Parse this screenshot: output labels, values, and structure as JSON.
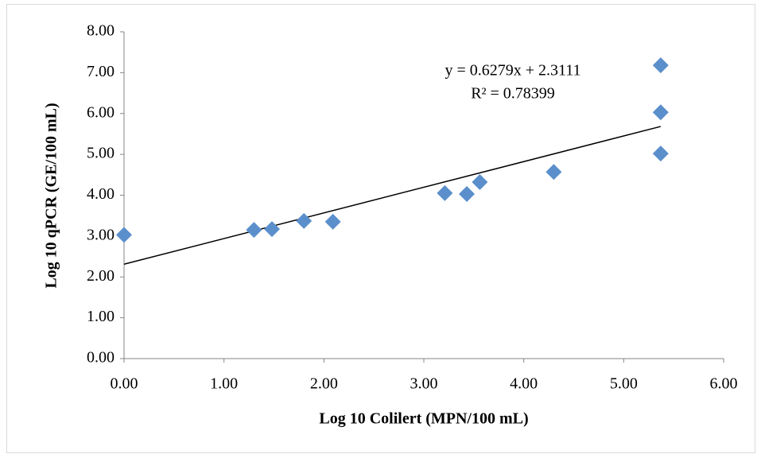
{
  "chart_data": {
    "type": "scatter",
    "x_label": "Log 10  Colilert (MPN/100 mL)",
    "y_label": "Log 10 qPCR (GE/100 mL)",
    "series": [
      {
        "color": "#5b8fcc",
        "x": [
          0,
          1.3,
          1.48,
          1.8,
          2.09,
          3.21,
          3.43,
          3.56,
          4.3,
          5.37,
          5.37,
          5.37
        ],
        "values": [
          3.03,
          3.15,
          3.17,
          3.37,
          3.35,
          4.05,
          4.03,
          4.32,
          4.57,
          7.18,
          6.03,
          5.02
        ]
      }
    ],
    "trendline": {
      "slope": 0.6279,
      "intercept": 2.3111,
      "color": "#000000"
    },
    "annotations": [
      "y = 0.6279x + 2.3111",
      "R² = 0.78399"
    ],
    "xlim": [
      0,
      6
    ],
    "xticks": [
      {
        "value": 0,
        "label": "0.00"
      },
      {
        "value": 1,
        "label": "1.00"
      },
      {
        "value": 2,
        "label": "2.00"
      },
      {
        "value": 3,
        "label": "3.00"
      },
      {
        "value": 4,
        "label": "4.00"
      },
      {
        "value": 5,
        "label": "5.00"
      },
      {
        "value": 6,
        "label": "6.00"
      }
    ],
    "ylim": [
      0,
      8
    ],
    "yticks": [
      {
        "value": 0,
        "label": "0.00"
      },
      {
        "value": 1,
        "label": "1.00"
      },
      {
        "value": 2,
        "label": "2.00"
      },
      {
        "value": 3,
        "label": "3.00"
      },
      {
        "value": 4,
        "label": "4.00"
      },
      {
        "value": 5,
        "label": "5.00"
      },
      {
        "value": 6,
        "label": "6.00"
      },
      {
        "value": 7,
        "label": "7.00"
      },
      {
        "value": 8,
        "label": "8.00"
      }
    ],
    "grid": false
  }
}
